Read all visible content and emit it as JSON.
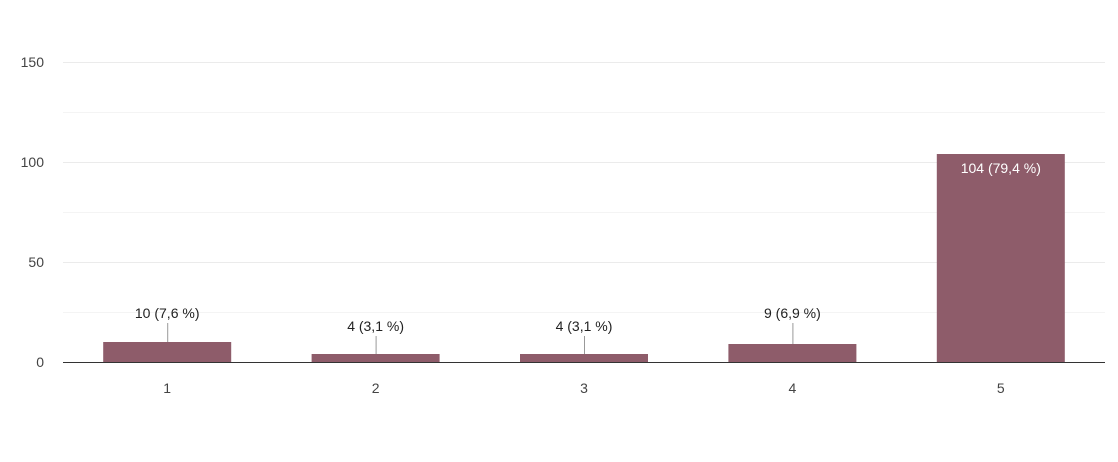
{
  "chart_data": {
    "type": "bar",
    "title": "",
    "xlabel": "",
    "ylabel": "",
    "categories": [
      "1",
      "2",
      "3",
      "4",
      "5"
    ],
    "values": [
      10,
      4,
      4,
      9,
      104
    ],
    "data_labels": [
      "10 (7,6 %)",
      "4 (3,1 %)",
      "4 (3,1 %)",
      "9 (6,9 %)",
      "104 (79,4 %)"
    ],
    "ylim": [
      0,
      150
    ],
    "yticks": [
      "0",
      "50",
      "100",
      "150"
    ],
    "grid": true,
    "legend": "none",
    "bar_color": "#8e5c6a"
  }
}
